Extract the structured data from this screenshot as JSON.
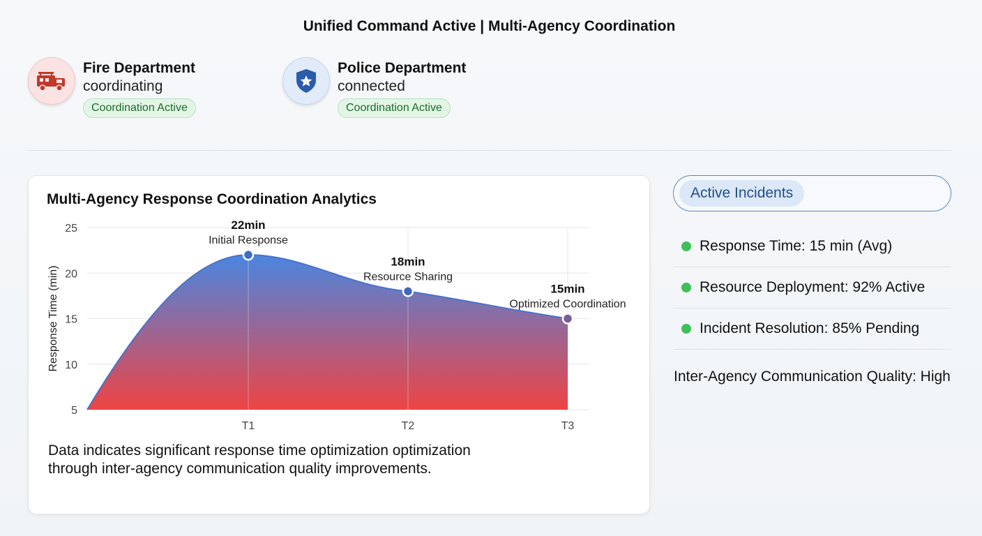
{
  "header": {
    "title": "Unified Command Active | Multi-Agency Coordination"
  },
  "agencies": [
    {
      "name": "Fire Department",
      "status": "coordinating",
      "badge": "Coordination Active",
      "icon": "fire-truck-icon",
      "color": "#c0392b"
    },
    {
      "name": "Police Department",
      "status": "connected",
      "badge": "Coordination Active",
      "icon": "police-shield-icon",
      "color": "#2a5caa"
    }
  ],
  "analytics": {
    "title": "Multi-Agency Response Coordination Analytics",
    "note": "Data indicates significant response time optimization optimization through inter-agency communication quality improvements."
  },
  "chart_data": {
    "type": "area",
    "title": "Multi-Agency Response Coordination Analytics",
    "xlabel": "",
    "ylabel": "Response Time (min)",
    "ylim": [
      5,
      25
    ],
    "yticks": [
      "25",
      "20",
      "15",
      "10",
      "5"
    ],
    "categories": [
      "T1",
      "T2",
      "T3"
    ],
    "x_start": 0,
    "series": [
      {
        "name": "",
        "values": [
          22,
          18,
          15
        ]
      }
    ],
    "start_value": 5,
    "annotations": [
      {
        "value": "22min",
        "label": "Initial Response"
      },
      {
        "value": "18min",
        "label": "Resource Sharing"
      },
      {
        "value": "15min",
        "label": "Optimized Coordination"
      }
    ],
    "grid": true,
    "gradient": {
      "top": "#4a86e0",
      "bottom": "#ee4444"
    }
  },
  "sidebar": {
    "incidents_label": "Active Incidents",
    "metrics": [
      {
        "label": "Response Time: 15 min (Avg)",
        "status_color": "#3fbf5a"
      },
      {
        "label": "Resource Deployment: 92% Active",
        "status_color": "#3fbf5a"
      },
      {
        "label": "Incident Resolution: 85% Pending",
        "status_color": "#3fbf5a"
      }
    ],
    "quality": "Inter-Agency Communication Quality: High"
  }
}
